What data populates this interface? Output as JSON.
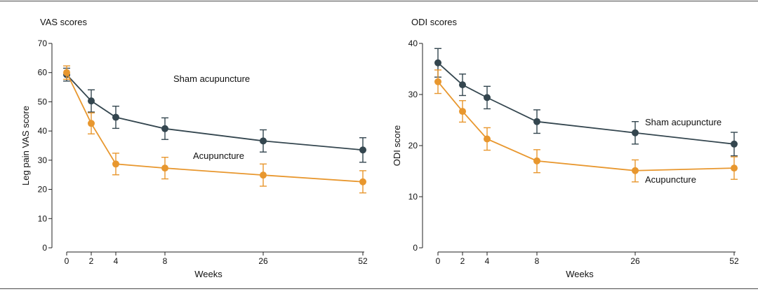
{
  "chart_data": [
    {
      "type": "line",
      "title": "VAS scores",
      "xlabel": "Weeks",
      "ylabel": "Leg pain VAS score",
      "x": [
        0,
        2,
        4,
        8,
        26,
        52
      ],
      "x_tick_labels": [
        "0",
        "2",
        "4",
        "8",
        "26",
        "52"
      ],
      "ylim": [
        0,
        70
      ],
      "y_ticks": [
        0,
        10,
        20,
        30,
        40,
        50,
        60,
        70
      ],
      "grid": false,
      "series": [
        {
          "name": "Sham acupuncture",
          "color": "#34464f",
          "values": [
            59.3,
            50.3,
            44.7,
            40.8,
            36.6,
            33.5
          ],
          "error_upper": [
            61.5,
            54.1,
            48.5,
            44.5,
            40.4,
            37.7
          ],
          "error_lower": [
            57.1,
            46.5,
            40.9,
            37.1,
            32.8,
            29.3
          ]
        },
        {
          "name": "Acupuncture",
          "color": "#e8972e",
          "values": [
            60.0,
            42.6,
            28.7,
            27.3,
            24.9,
            22.6
          ],
          "error_upper": [
            62.3,
            46.2,
            32.4,
            31.0,
            28.7,
            26.4
          ],
          "error_lower": [
            57.7,
            39.0,
            25.0,
            23.6,
            21.1,
            18.8
          ]
        }
      ]
    },
    {
      "type": "line",
      "title": "ODI scores",
      "xlabel": "Weeks",
      "ylabel": "ODI score",
      "x": [
        0,
        2,
        4,
        8,
        26,
        52
      ],
      "x_tick_labels": [
        "0",
        "2",
        "4",
        "8",
        "26",
        "52"
      ],
      "ylim": [
        0,
        40
      ],
      "y_ticks": [
        0,
        10,
        20,
        30,
        40
      ],
      "grid": false,
      "series": [
        {
          "name": "Sham acupuncture",
          "color": "#34464f",
          "values": [
            36.2,
            31.9,
            29.4,
            24.7,
            22.5,
            20.3
          ],
          "error_upper": [
            39.0,
            34.0,
            31.6,
            27.0,
            24.7,
            22.6
          ],
          "error_lower": [
            33.4,
            29.8,
            27.2,
            22.4,
            20.3,
            18.0
          ]
        },
        {
          "name": "Acupuncture",
          "color": "#e8972e",
          "values": [
            32.5,
            26.7,
            21.3,
            17.0,
            15.1,
            15.6
          ],
          "error_upper": [
            34.8,
            28.8,
            23.5,
            19.2,
            17.2,
            17.8
          ],
          "error_lower": [
            30.2,
            24.6,
            19.1,
            14.7,
            12.9,
            13.4
          ]
        }
      ]
    }
  ]
}
